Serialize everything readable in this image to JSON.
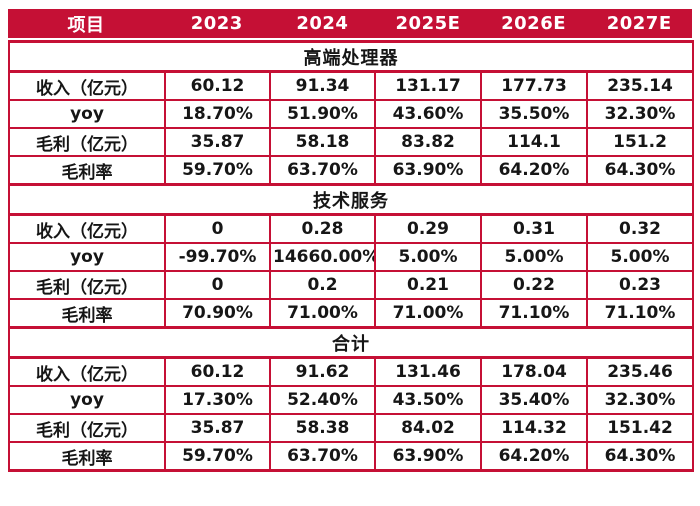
{
  "colors": {
    "accent": "#C51035",
    "header_text": "#FFFFFF",
    "body_text": "#161616",
    "background": "#FFFFFF"
  },
  "header": {
    "columns": [
      "项目",
      "2023",
      "2024",
      "2025E",
      "2026E",
      "2027E"
    ]
  },
  "chart_data": {
    "type": "table",
    "columns": [
      "项目",
      "2023",
      "2024",
      "2025E",
      "2026E",
      "2027E"
    ],
    "sections": [
      {
        "title": "高端处理器",
        "rows": [
          {
            "label": "收入（亿元）",
            "values": [
              "60.12",
              "91.34",
              "131.17",
              "177.73",
              "235.14"
            ]
          },
          {
            "label": "yoy",
            "values": [
              "18.70%",
              "51.90%",
              "43.60%",
              "35.50%",
              "32.30%"
            ]
          },
          {
            "label": "毛利（亿元）",
            "values": [
              "35.87",
              "58.18",
              "83.82",
              "114.1",
              "151.2"
            ]
          },
          {
            "label": "毛利率",
            "values": [
              "59.70%",
              "63.70%",
              "63.90%",
              "64.20%",
              "64.30%"
            ]
          }
        ]
      },
      {
        "title": "技术服务",
        "rows": [
          {
            "label": "收入（亿元）",
            "values": [
              "0",
              "0.28",
              "0.29",
              "0.31",
              "0.32"
            ]
          },
          {
            "label": "yoy",
            "values": [
              "-99.70%",
              "14660.00%",
              "5.00%",
              "5.00%",
              "5.00%"
            ]
          },
          {
            "label": "毛利（亿元）",
            "values": [
              "0",
              "0.2",
              "0.21",
              "0.22",
              "0.23"
            ]
          },
          {
            "label": "毛利率",
            "values": [
              "70.90%",
              "71.00%",
              "71.00%",
              "71.10%",
              "71.10%"
            ]
          }
        ]
      },
      {
        "title": "合计",
        "rows": [
          {
            "label": "收入（亿元）",
            "values": [
              "60.12",
              "91.62",
              "131.46",
              "178.04",
              "235.46"
            ]
          },
          {
            "label": "yoy",
            "values": [
              "17.30%",
              "52.40%",
              "43.50%",
              "35.40%",
              "32.30%"
            ]
          },
          {
            "label": "毛利（亿元）",
            "values": [
              "35.87",
              "58.38",
              "84.02",
              "114.32",
              "151.42"
            ]
          },
          {
            "label": "毛利率",
            "values": [
              "59.70%",
              "63.70%",
              "63.90%",
              "64.20%",
              "64.30%"
            ]
          }
        ]
      }
    ]
  }
}
